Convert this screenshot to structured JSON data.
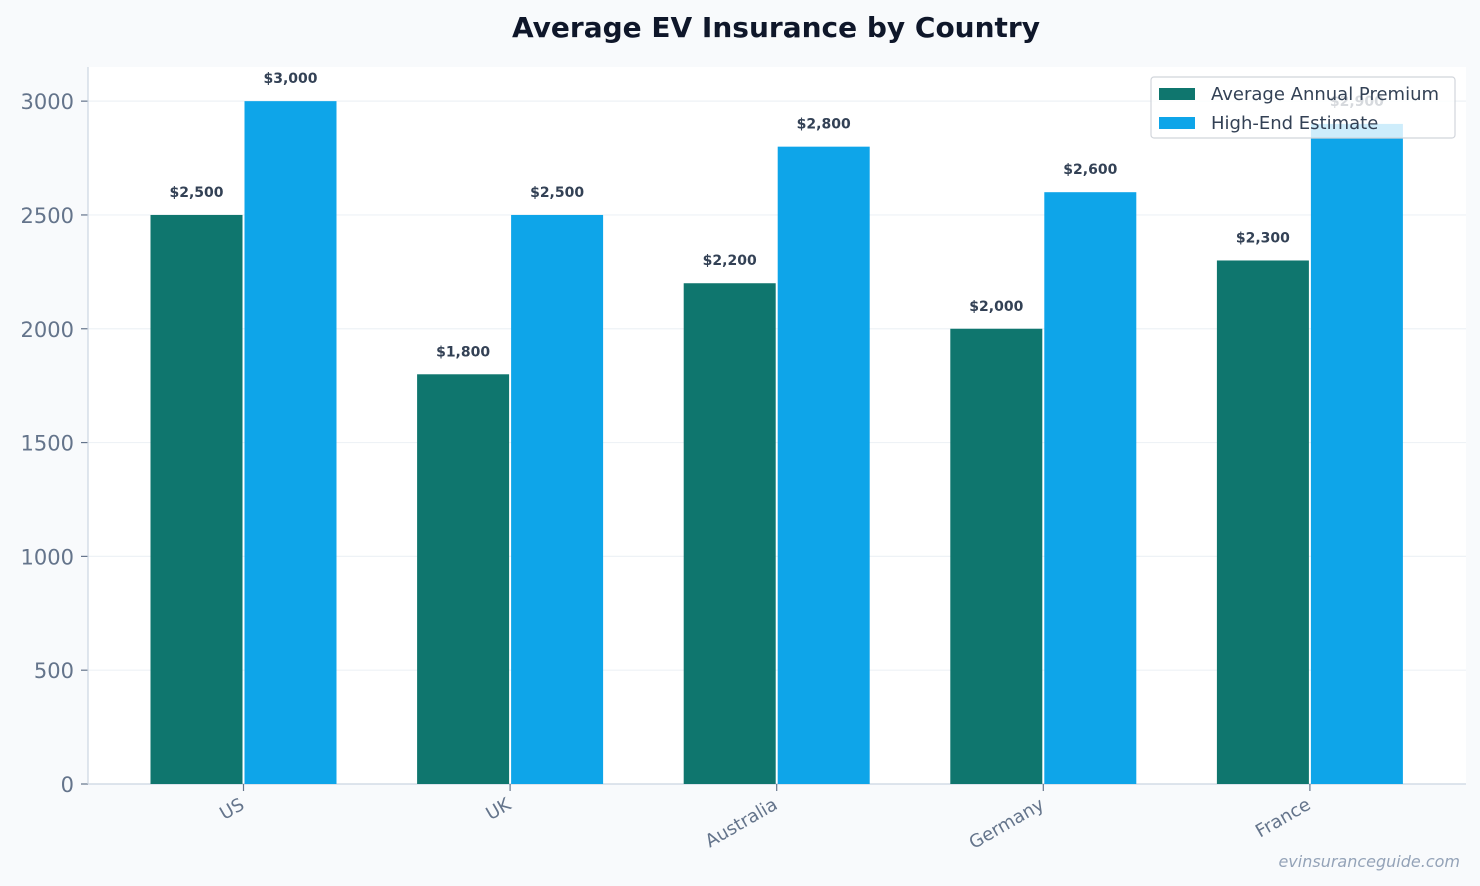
{
  "chart_data": {
    "type": "bar",
    "title": "Average EV Insurance by Country",
    "xlabel": "",
    "ylabel": "",
    "categories": [
      "US",
      "UK",
      "Australia",
      "Germany",
      "France"
    ],
    "series": [
      {
        "name": "Average Annual Premium",
        "color": "#0f766e",
        "values": [
          2500,
          1800,
          2200,
          2000,
          2300
        ],
        "labels": [
          "$2,500",
          "$1,800",
          "$2,200",
          "$2,000",
          "$2,300"
        ]
      },
      {
        "name": "High-End Estimate",
        "color": "#0ea5e9",
        "values": [
          3000,
          2500,
          2800,
          2600,
          2900
        ],
        "labels": [
          "$3,000",
          "$2,500",
          "$2,800",
          "$2,600",
          "$2,900"
        ]
      }
    ],
    "ylim": [
      0,
      3150
    ],
    "yticks": [
      0,
      500,
      1000,
      1500,
      2000,
      2500,
      3000
    ],
    "grid": true,
    "legend_position": "top-right",
    "colors": {
      "page_background": "#f8fafc",
      "plot_background": "#ffffff",
      "grid": "#eef2f6",
      "axis": "#cbd5e1"
    }
  },
  "watermark": "evinsuranceguide.com"
}
